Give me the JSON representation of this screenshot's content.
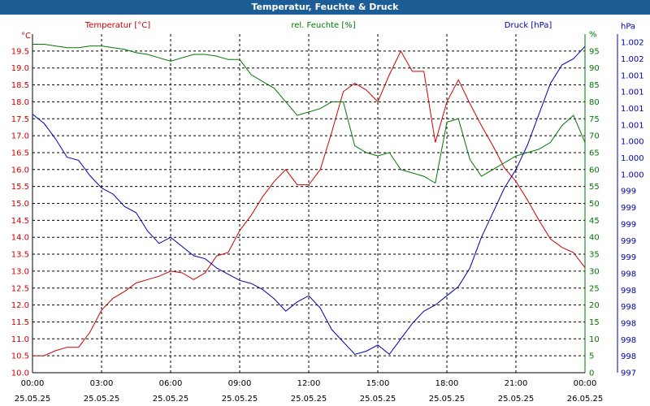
{
  "window": {
    "title": "Temperatur, Feuchte & Druck"
  },
  "colors": {
    "temperature": "#cc0000",
    "humidity": "#007700",
    "pressure": "#0000aa",
    "titlebar": "#1c5d96"
  },
  "chart_data": {
    "type": "line",
    "title": "Temperatur, Feuchte & Druck",
    "grid": true,
    "x_tick_labels": [
      [
        "00:00",
        "25.05.25"
      ],
      [
        "03:00",
        "25.05.25"
      ],
      [
        "06:00",
        "25.05.25"
      ],
      [
        "09:00",
        "25.05.25"
      ],
      [
        "12:00",
        "25.05.25"
      ],
      [
        "15:00",
        "25.05.25"
      ],
      [
        "18:00",
        "25.05.25"
      ],
      [
        "21:00",
        "25.05.25"
      ],
      [
        "00:00",
        "26.05.25"
      ]
    ],
    "axes": {
      "temperature": {
        "label": "Temperatur [°C]",
        "unit": "°C",
        "ylim": [
          10.0,
          20.0
        ],
        "ticks": [
          "10.0",
          "10.5",
          "11.0",
          "11.5",
          "12.0",
          "12.5",
          "13.0",
          "13.5",
          "14.0",
          "14.5",
          "15.0",
          "15.5",
          "16.0",
          "16.5",
          "17.0",
          "17.5",
          "18.0",
          "18.5",
          "19.0",
          "19.5"
        ]
      },
      "humidity": {
        "label": "rel. Feuchte [%]",
        "unit": "%",
        "ylim": [
          0,
          100
        ],
        "ticks": [
          "0",
          "5",
          "10",
          "15",
          "20",
          "25",
          "30",
          "35",
          "40",
          "45",
          "50",
          "55",
          "60",
          "65",
          "70",
          "75",
          "80",
          "85",
          "90",
          "95",
          "%"
        ]
      },
      "pressure": {
        "label": "Druck [hPa]",
        "unit": "hPa",
        "ylim": [
          997.0,
          1002.5
        ],
        "ticks": [
          "997",
          "998",
          "998",
          "998",
          "998",
          "998",
          "998",
          "999",
          "999",
          "999",
          "999",
          "999",
          "1.000",
          "1.000",
          "1.000",
          "1.001",
          "1.001",
          "1.001",
          "1.001",
          "1.002",
          "1.002",
          "hPa"
        ]
      }
    },
    "series": [
      {
        "name": "Temperatur [°C]",
        "axis": "temperature",
        "x_hours": [
          0,
          0.5,
          1,
          1.5,
          2,
          2.5,
          3,
          3.5,
          4,
          4.5,
          5,
          5.5,
          6,
          6.5,
          7,
          7.5,
          8,
          8.5,
          9,
          9.5,
          10,
          10.5,
          11,
          11.5,
          12,
          12.5,
          13,
          13.5,
          14,
          14.5,
          15,
          15.5,
          16,
          16.5,
          17,
          17.5,
          18,
          18.5,
          19,
          19.5,
          20,
          20.5,
          21,
          21.5,
          22,
          22.5,
          23,
          23.5,
          24
        ],
        "values": [
          10.5,
          10.5,
          10.65,
          10.75,
          10.75,
          11.2,
          11.85,
          12.2,
          12.4,
          12.65,
          12.75,
          12.85,
          13.0,
          12.95,
          12.75,
          12.95,
          13.45,
          13.55,
          14.2,
          14.65,
          15.2,
          15.65,
          16.0,
          15.55,
          15.55,
          16.0,
          17.1,
          18.3,
          18.55,
          18.35,
          18.0,
          18.8,
          19.5,
          18.9,
          18.9,
          16.8,
          18.0,
          18.65,
          17.95,
          17.3,
          16.7,
          16.05,
          15.65,
          15.1,
          14.5,
          13.95,
          13.7,
          13.55,
          13.1
        ]
      },
      {
        "name": "rel. Feuchte [%]",
        "axis": "humidity",
        "x_hours": [
          0,
          0.5,
          1,
          1.5,
          2,
          2.5,
          3,
          3.5,
          4,
          4.5,
          5,
          5.5,
          6,
          6.5,
          7,
          7.5,
          8,
          8.5,
          9,
          9.5,
          10,
          10.5,
          11,
          11.5,
          12,
          12.5,
          13,
          13.5,
          14,
          14.5,
          15,
          15.5,
          16,
          16.5,
          17,
          17.5,
          18,
          18.5,
          19,
          19.5,
          20,
          20.5,
          21,
          21.5,
          22,
          22.5,
          23,
          23.5,
          24
        ],
        "values": [
          97,
          97,
          96.5,
          96,
          96,
          96.5,
          96.5,
          96,
          95.5,
          94.5,
          94,
          93,
          92,
          93,
          94,
          94,
          93.5,
          92.5,
          92.5,
          88,
          86,
          84,
          80,
          76,
          77,
          78,
          80,
          80,
          67,
          65,
          64,
          65,
          60,
          59,
          58,
          56,
          74,
          75,
          63,
          58,
          60,
          62,
          64,
          65,
          66,
          68,
          73,
          76,
          68
        ]
      },
      {
        "name": "Druck [hPa]",
        "axis": "pressure",
        "x_hours": [
          0,
          0.5,
          1,
          1.5,
          2,
          2.5,
          3,
          3.5,
          4,
          4.5,
          5,
          5.5,
          6,
          6.5,
          7,
          7.5,
          8,
          8.5,
          9,
          9.5,
          10,
          10.5,
          11,
          11.5,
          12,
          12.5,
          13,
          13.5,
          14,
          14.5,
          15,
          15.5,
          16,
          16.5,
          17,
          17.5,
          18,
          18.5,
          19,
          19.5,
          20,
          20.5,
          21,
          21.5,
          22,
          22.5,
          23,
          23.5,
          24
        ],
        "values": [
          1001.2,
          1001.05,
          1000.8,
          1000.5,
          1000.45,
          1000.2,
          1000.0,
          999.9,
          999.7,
          999.6,
          999.3,
          999.1,
          999.2,
          999.05,
          998.9,
          998.85,
          998.7,
          998.6,
          998.5,
          998.45,
          998.35,
          998.2,
          998.0,
          998.15,
          998.25,
          998.05,
          997.7,
          997.5,
          997.3,
          997.35,
          997.45,
          997.3,
          997.55,
          997.8,
          998.0,
          998.1,
          998.25,
          998.4,
          998.7,
          999.2,
          999.6,
          1000.0,
          1000.3,
          1000.7,
          1001.2,
          1001.7,
          1002.0,
          1002.1,
          1002.3
        ]
      }
    ]
  }
}
